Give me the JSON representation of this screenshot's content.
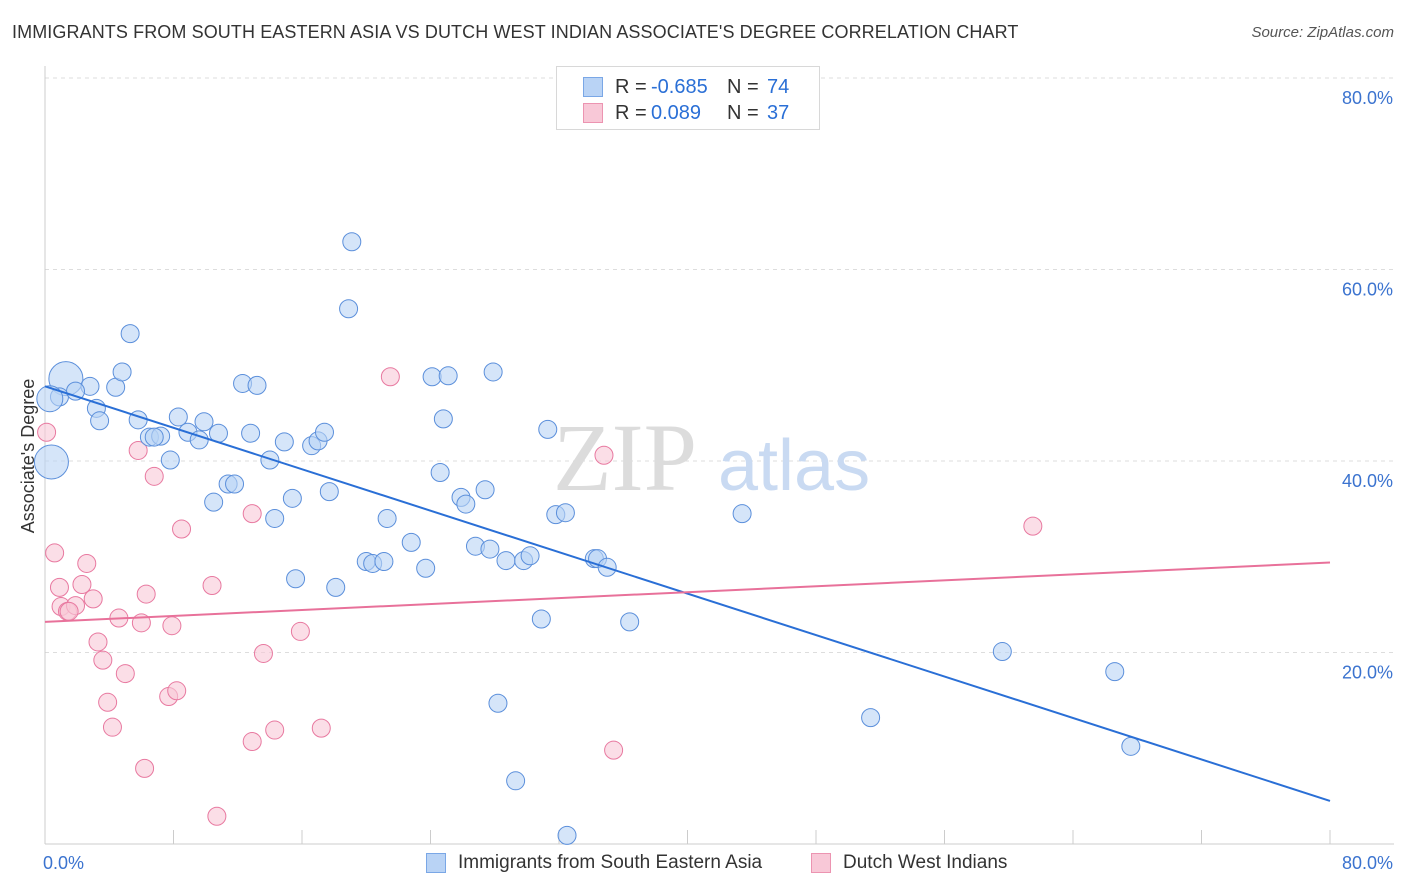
{
  "title": "IMMIGRANTS FROM SOUTH EASTERN ASIA VS DUTCH WEST INDIAN ASSOCIATE'S DEGREE CORRELATION CHART",
  "source": "Source: ZipAtlas.com",
  "watermark": {
    "zip": "ZIP",
    "atlas": "atlas"
  },
  "legend": {
    "rows": [
      {
        "r_label": "R =",
        "r_value": "-0.685",
        "n_label": "N =",
        "n_value": "74",
        "fill": "#b9d3f5",
        "stroke": "#7aa7e6"
      },
      {
        "r_label": "R =",
        "r_value": "0.089",
        "n_label": "N =",
        "n_value": "37",
        "fill": "#f8c8d7",
        "stroke": "#ec94b1"
      }
    ]
  },
  "bottom_legend": {
    "items": [
      {
        "label": "Immigrants from South Eastern Asia",
        "fill": "#b9d3f5",
        "stroke": "#7aa7e6"
      },
      {
        "label": "Dutch West Indians",
        "fill": "#f8c8d7",
        "stroke": "#ec94b1"
      }
    ]
  },
  "chart_data": {
    "type": "scatter",
    "title": "IMMIGRANTS FROM SOUTH EASTERN ASIA VS DUTCH WEST INDIAN ASSOCIATE'S DEGREE CORRELATION CHART",
    "xlabel": "",
    "ylabel": "Associate's Degree",
    "xlim": [
      0,
      80
    ],
    "ylim": [
      0,
      80
    ],
    "x_tick_labels": [
      "0.0%",
      "80.0%"
    ],
    "y_tick_labels": [
      "20.0%",
      "40.0%",
      "60.0%",
      "80.0%"
    ],
    "y_ticks": [
      20,
      40,
      60,
      80
    ],
    "grid": true,
    "legend_position": "top-center",
    "series": [
      {
        "name": "Immigrants from South Eastern Asia",
        "color": "#5b8fdb",
        "fill": "#b9d3f5",
        "trend": {
          "x": [
            0,
            80
          ],
          "y": [
            47.8,
            4.5
          ],
          "color": "#2a6fd6"
        },
        "points": [
          [
            1.3,
            48.6
          ],
          [
            0.9,
            46.7
          ],
          [
            2.8,
            47.8
          ],
          [
            1.9,
            47.3
          ],
          [
            4.4,
            47.7
          ],
          [
            4.8,
            49.3
          ],
          [
            5.3,
            53.3
          ],
          [
            3.2,
            45.5
          ],
          [
            3.4,
            44.2
          ],
          [
            5.8,
            44.3
          ],
          [
            6.5,
            42.5
          ],
          [
            7.2,
            42.6
          ],
          [
            8.3,
            44.6
          ],
          [
            8.9,
            43.0
          ],
          [
            9.6,
            42.2
          ],
          [
            9.9,
            44.1
          ],
          [
            10.8,
            42.9
          ],
          [
            7.8,
            40.1
          ],
          [
            12.3,
            48.1
          ],
          [
            13.2,
            47.9
          ],
          [
            12.8,
            42.9
          ],
          [
            14.0,
            40.1
          ],
          [
            14.9,
            42.0
          ],
          [
            16.6,
            41.6
          ],
          [
            17.0,
            42.1
          ],
          [
            17.4,
            43.0
          ],
          [
            10.5,
            35.7
          ],
          [
            11.4,
            37.6
          ],
          [
            11.8,
            37.6
          ],
          [
            14.3,
            34.0
          ],
          [
            15.4,
            36.1
          ],
          [
            17.7,
            36.8
          ],
          [
            19.1,
            62.9
          ],
          [
            18.9,
            55.9
          ],
          [
            20.0,
            29.5
          ],
          [
            20.4,
            29.3
          ],
          [
            21.1,
            29.5
          ],
          [
            21.3,
            34.0
          ],
          [
            22.8,
            31.5
          ],
          [
            23.7,
            28.8
          ],
          [
            24.1,
            48.8
          ],
          [
            24.6,
            38.8
          ],
          [
            24.8,
            44.4
          ],
          [
            25.1,
            48.9
          ],
          [
            25.9,
            36.2
          ],
          [
            26.2,
            35.5
          ],
          [
            26.8,
            31.1
          ],
          [
            27.4,
            37.0
          ],
          [
            27.7,
            30.8
          ],
          [
            27.9,
            49.3
          ],
          [
            28.7,
            29.6
          ],
          [
            29.8,
            29.6
          ],
          [
            30.2,
            30.1
          ],
          [
            31.3,
            43.3
          ],
          [
            31.8,
            34.4
          ],
          [
            32.4,
            34.6
          ],
          [
            34.2,
            29.8
          ],
          [
            34.4,
            29.8
          ],
          [
            35.0,
            28.9
          ],
          [
            36.4,
            23.2
          ],
          [
            15.6,
            27.7
          ],
          [
            18.1,
            26.8
          ],
          [
            30.9,
            23.5
          ],
          [
            28.2,
            14.7
          ],
          [
            29.3,
            6.6
          ],
          [
            32.5,
            0.9
          ],
          [
            43.4,
            34.5
          ],
          [
            51.4,
            13.2
          ],
          [
            59.6,
            20.1
          ],
          [
            66.6,
            18.0
          ],
          [
            67.6,
            10.2
          ],
          [
            0.4,
            39.9
          ],
          [
            0.3,
            46.5
          ],
          [
            6.8,
            42.5
          ]
        ],
        "sizes_note": "two larger points at (0.4,39.9) and (1.3,48.6)"
      },
      {
        "name": "Dutch West Indians",
        "color": "#e879a0",
        "fill": "#f8c8d7",
        "trend": {
          "x": [
            0,
            80
          ],
          "y": [
            23.2,
            29.4
          ],
          "color": "#e8719a"
        },
        "points": [
          [
            0.1,
            43.0
          ],
          [
            0.6,
            30.4
          ],
          [
            0.9,
            26.8
          ],
          [
            1.0,
            24.8
          ],
          [
            1.4,
            24.3
          ],
          [
            1.9,
            24.9
          ],
          [
            2.3,
            27.1
          ],
          [
            2.6,
            29.3
          ],
          [
            3.0,
            25.6
          ],
          [
            3.3,
            21.1
          ],
          [
            3.6,
            19.2
          ],
          [
            3.9,
            14.8
          ],
          [
            4.2,
            12.2
          ],
          [
            4.6,
            23.6
          ],
          [
            5.0,
            17.8
          ],
          [
            5.8,
            41.1
          ],
          [
            6.0,
            23.1
          ],
          [
            6.2,
            7.9
          ],
          [
            6.3,
            26.1
          ],
          [
            6.8,
            38.4
          ],
          [
            7.7,
            15.4
          ],
          [
            7.9,
            22.8
          ],
          [
            8.2,
            16.0
          ],
          [
            8.5,
            32.9
          ],
          [
            10.4,
            27.0
          ],
          [
            10.7,
            2.9
          ],
          [
            12.9,
            34.5
          ],
          [
            12.9,
            10.7
          ],
          [
            13.6,
            19.9
          ],
          [
            14.3,
            11.9
          ],
          [
            15.9,
            22.2
          ],
          [
            17.2,
            12.1
          ],
          [
            21.5,
            48.8
          ],
          [
            34.8,
            40.6
          ],
          [
            35.4,
            9.8
          ],
          [
            61.5,
            33.2
          ],
          [
            1.5,
            24.3
          ]
        ]
      }
    ]
  }
}
